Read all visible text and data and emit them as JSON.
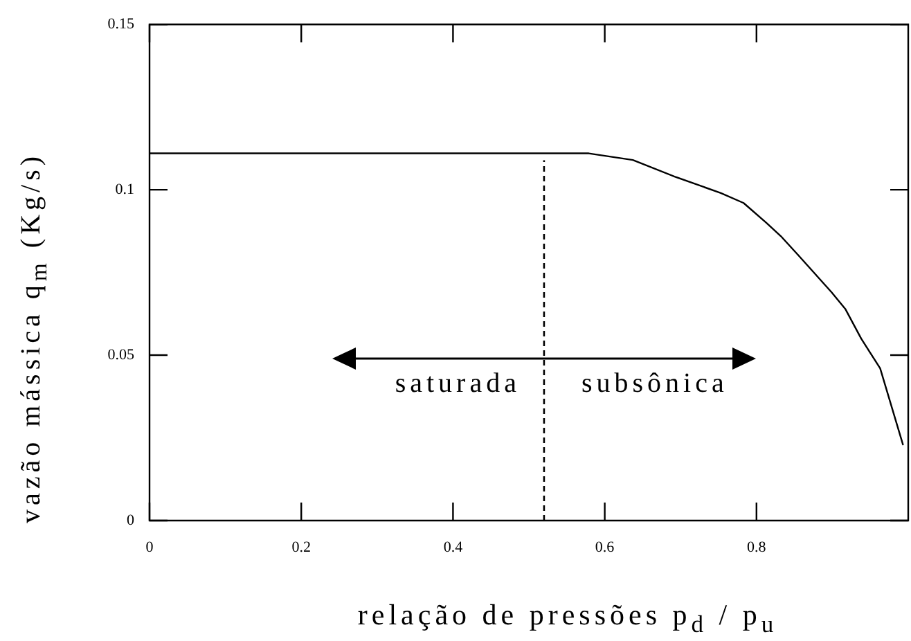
{
  "chart_data": {
    "type": "line",
    "xlabel": "relação de pressões p$_{d}$ / p$_{u}$",
    "ylabel": "vazão mássica q$_{m}$ (Kg/s)",
    "series": [
      {
        "color": "#000000",
        "x": [
          0,
          0.579,
          0.637,
          0.692,
          0.753,
          0.783,
          0.813,
          0.832,
          0.856,
          0.899,
          0.917,
          0.938,
          0.963,
          0.993
        ],
        "values": [
          0.111,
          0.111,
          0.109,
          0.104,
          0.099,
          0.096,
          0.09,
          0.086,
          0.08,
          0.069,
          0.064,
          0.055,
          0.046,
          0.023
        ]
      }
    ],
    "xlim": [
      0,
      1
    ],
    "ylim": [
      0,
      0.15
    ],
    "xticks": [
      0,
      0.2,
      0.4,
      0.6,
      0.8
    ],
    "yticks": [
      0,
      0.05,
      0.1,
      0.15
    ],
    "ref_lines": [
      {
        "axis": "x",
        "value": 0.52,
        "color": "#000000",
        "line_style": "dashed"
      }
    ],
    "annotations": [
      "saturada",
      "subsônica"
    ],
    "grid": false,
    "legend": false,
    "marker": "none",
    "line_style": "solid"
  }
}
